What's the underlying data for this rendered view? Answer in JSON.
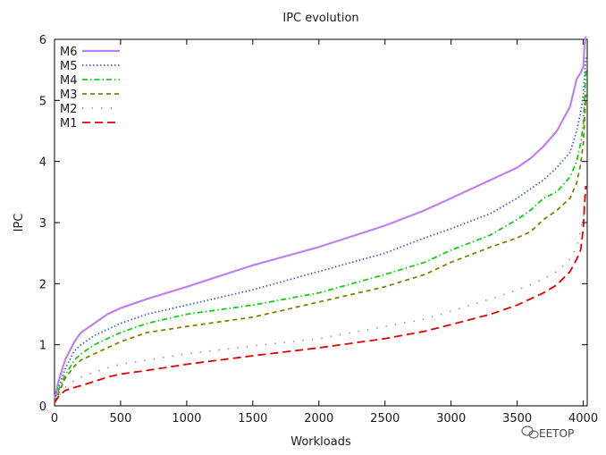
{
  "chart_data": {
    "type": "line",
    "title": "IPC evolution",
    "xlabel": "Workloads",
    "ylabel": "IPC",
    "xlim": [
      0,
      4030
    ],
    "ylim": [
      0,
      6
    ],
    "xticks": [
      0,
      500,
      1000,
      1500,
      2000,
      2500,
      3000,
      3500,
      4000
    ],
    "yticks": [
      0,
      1,
      2,
      3,
      4,
      5,
      6
    ],
    "grid": false,
    "legend_position": "top-left",
    "series": [
      {
        "name": "M6",
        "color": "#c080f0",
        "dash": "solid",
        "x": [
          0,
          30,
          80,
          150,
          200,
          300,
          400,
          500,
          700,
          1000,
          1500,
          2000,
          2500,
          2800,
          3000,
          3300,
          3500,
          3600,
          3700,
          3800,
          3900,
          3950,
          3980,
          4000,
          4010,
          4020
        ],
        "y": [
          0.1,
          0.4,
          0.75,
          1.05,
          1.2,
          1.35,
          1.5,
          1.6,
          1.75,
          1.95,
          2.3,
          2.6,
          2.95,
          3.2,
          3.4,
          3.7,
          3.9,
          4.05,
          4.25,
          4.5,
          4.9,
          5.35,
          5.45,
          5.55,
          5.9,
          6.05
        ]
      },
      {
        "name": "M5",
        "color": "#4060d0",
        "dash": "dotted",
        "x": [
          0,
          30,
          80,
          150,
          200,
          300,
          400,
          500,
          700,
          1000,
          1500,
          2000,
          2500,
          2800,
          3000,
          3300,
          3500,
          3600,
          3700,
          3800,
          3900,
          3950,
          3980,
          4000,
          4010,
          4020
        ],
        "y": [
          0.1,
          0.3,
          0.6,
          0.9,
          1.0,
          1.15,
          1.25,
          1.35,
          1.5,
          1.65,
          1.9,
          2.2,
          2.5,
          2.75,
          2.9,
          3.15,
          3.4,
          3.55,
          3.7,
          3.9,
          4.15,
          4.5,
          4.8,
          5.1,
          5.4,
          5.7
        ]
      },
      {
        "name": "M4",
        "color": "#10d010",
        "dash": "dashdot",
        "x": [
          0,
          30,
          80,
          150,
          200,
          300,
          400,
          500,
          700,
          1000,
          1500,
          2000,
          2500,
          2800,
          3000,
          3300,
          3500,
          3600,
          3700,
          3800,
          3900,
          3950,
          3980,
          4000,
          4010,
          4020
        ],
        "y": [
          0.05,
          0.25,
          0.5,
          0.75,
          0.85,
          1.0,
          1.1,
          1.2,
          1.35,
          1.5,
          1.65,
          1.85,
          2.15,
          2.35,
          2.55,
          2.8,
          3.05,
          3.2,
          3.4,
          3.5,
          3.75,
          4.0,
          4.3,
          4.6,
          5.0,
          5.5
        ]
      },
      {
        "name": "M3",
        "color": "#808000",
        "dash": "dashed",
        "x": [
          0,
          30,
          80,
          150,
          200,
          300,
          400,
          500,
          700,
          1000,
          1500,
          2000,
          2500,
          2800,
          3000,
          3300,
          3500,
          3600,
          3700,
          3800,
          3900,
          3950,
          3980,
          4000,
          4010,
          4020
        ],
        "y": [
          0.05,
          0.2,
          0.45,
          0.65,
          0.75,
          0.85,
          0.95,
          1.05,
          1.2,
          1.3,
          1.45,
          1.7,
          1.95,
          2.15,
          2.35,
          2.6,
          2.75,
          2.85,
          3.05,
          3.2,
          3.4,
          3.65,
          3.95,
          4.3,
          4.7,
          5.1
        ]
      },
      {
        "name": "M2",
        "color": "#a0a0a0",
        "dash": "sparse-dotted",
        "x": [
          0,
          30,
          80,
          150,
          200,
          300,
          400,
          500,
          700,
          1000,
          1500,
          2000,
          2500,
          2800,
          3000,
          3300,
          3500,
          3600,
          3700,
          3800,
          3900,
          3950,
          3980,
          4000,
          4010,
          4020
        ],
        "y": [
          0.05,
          0.15,
          0.3,
          0.42,
          0.47,
          0.55,
          0.62,
          0.68,
          0.75,
          0.85,
          0.98,
          1.1,
          1.3,
          1.42,
          1.55,
          1.75,
          1.9,
          1.98,
          2.08,
          2.2,
          2.4,
          2.6,
          2.85,
          3.1,
          3.4,
          3.7
        ]
      },
      {
        "name": "M1",
        "color": "#e00000",
        "dash": "long-dash",
        "x": [
          0,
          30,
          80,
          150,
          200,
          300,
          400,
          500,
          700,
          1000,
          1500,
          2000,
          2500,
          2800,
          3000,
          3300,
          3500,
          3600,
          3700,
          3800,
          3900,
          3950,
          3980,
          4000,
          4010,
          4020
        ],
        "y": [
          0.05,
          0.15,
          0.25,
          0.3,
          0.33,
          0.4,
          0.47,
          0.52,
          0.58,
          0.68,
          0.82,
          0.95,
          1.1,
          1.22,
          1.33,
          1.5,
          1.65,
          1.75,
          1.85,
          1.98,
          2.2,
          2.4,
          2.55,
          2.9,
          3.3,
          3.6
        ]
      }
    ]
  },
  "watermark": {
    "text": "EETOP",
    "icon": "wechat-icon"
  }
}
